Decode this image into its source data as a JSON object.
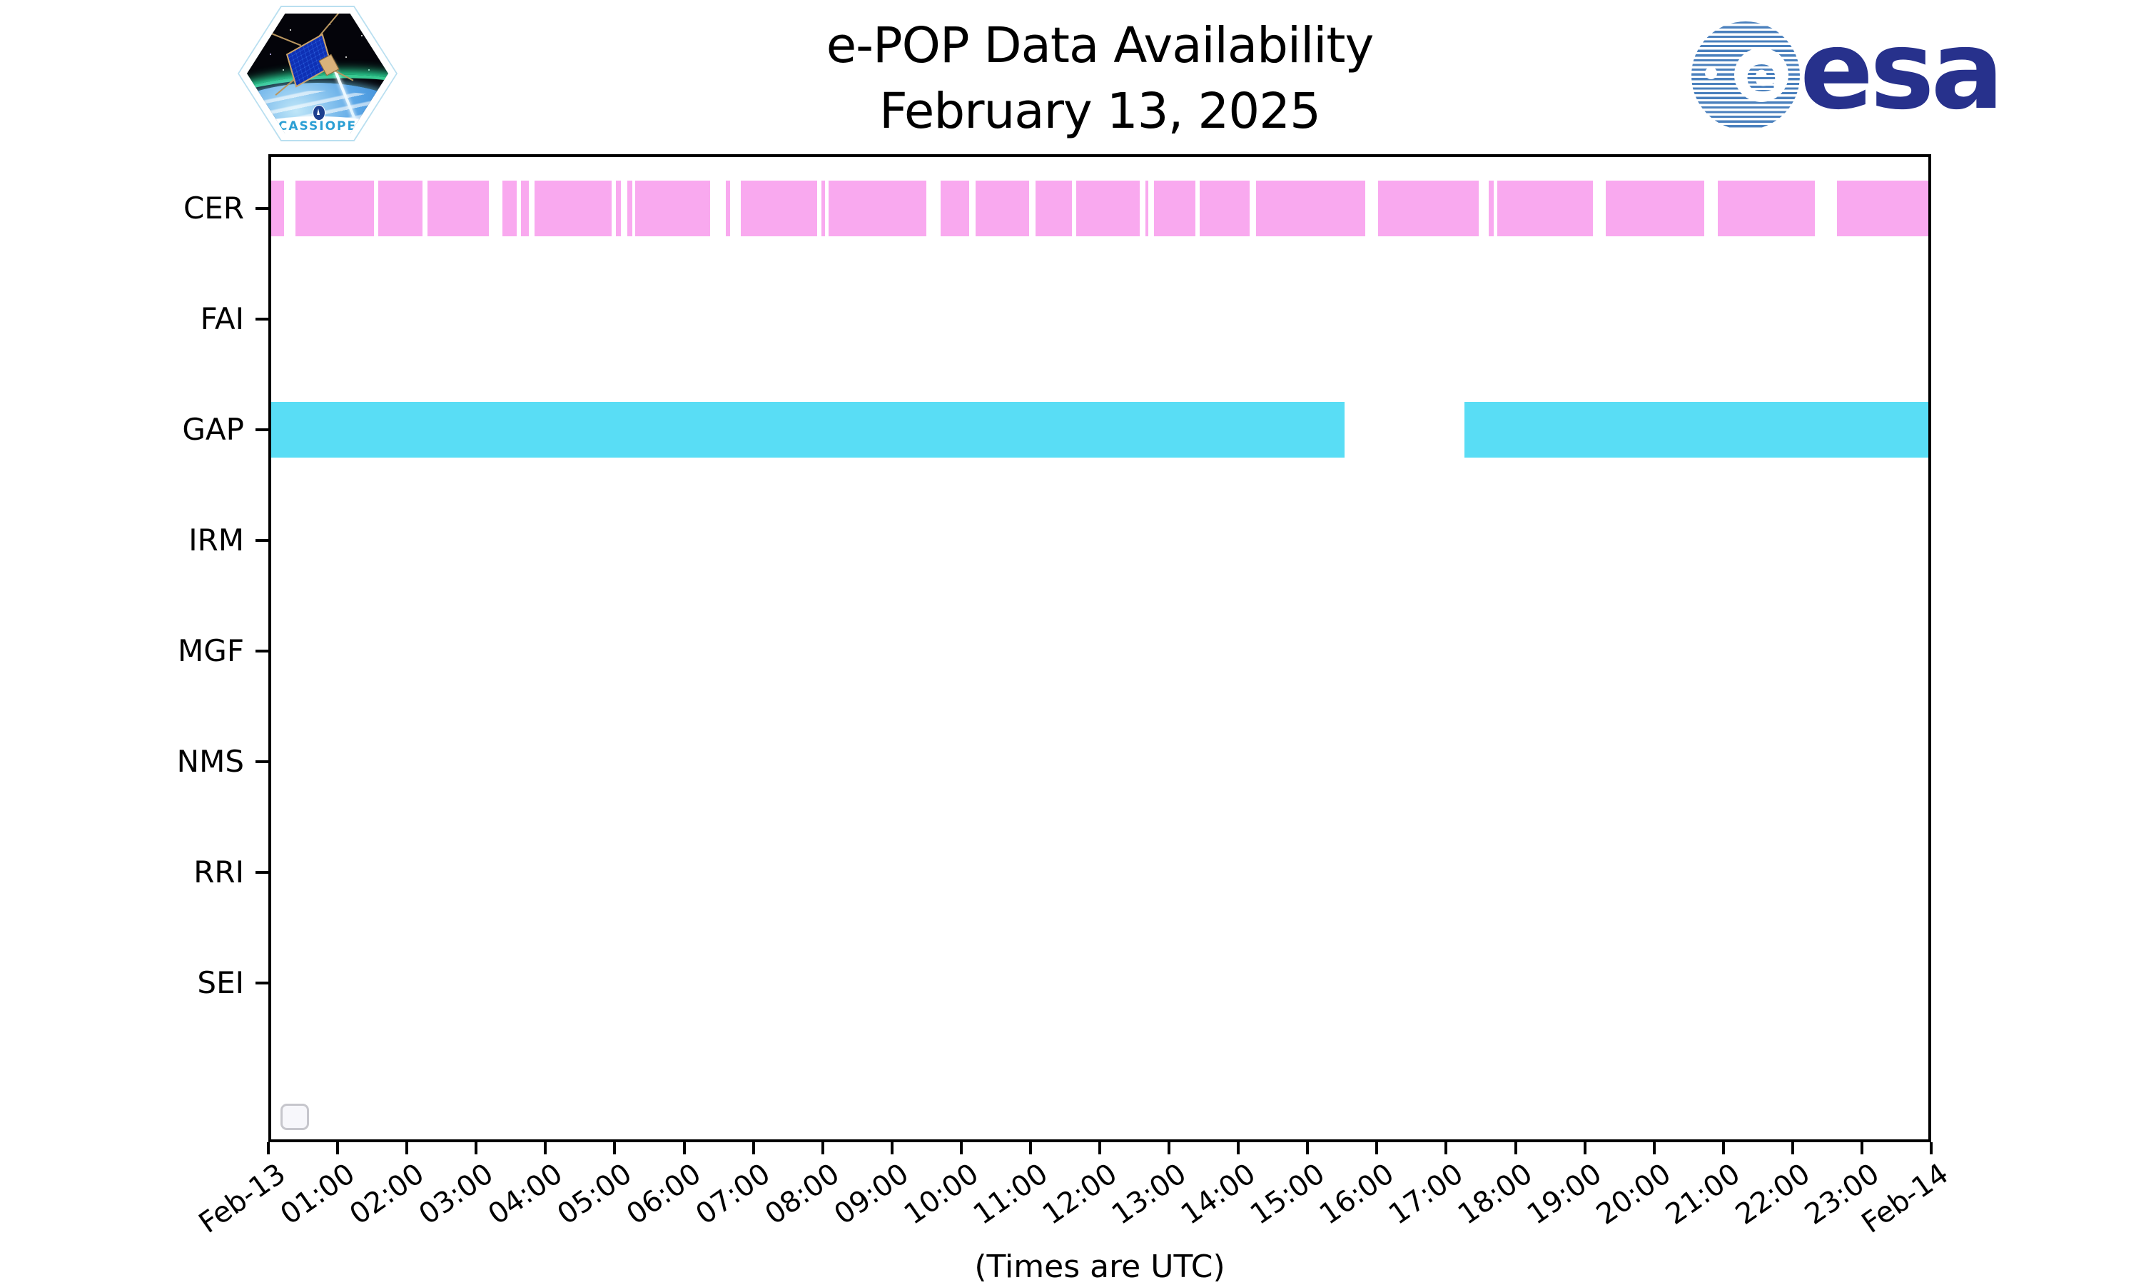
{
  "header": {
    "title": "e-POP Data Availability",
    "subtitle": "February 13, 2025",
    "cassiope_label": "CASSIOPE",
    "esa_wordmark": "esa",
    "esa_globe_letter": "e"
  },
  "footer_note": "(Times are UTC)",
  "colors": {
    "cer_bar": "#F9A9EF",
    "gap_bar": "#59DDF5",
    "axis": "#000000",
    "esa_navy": "#27318c",
    "esa_stripe_blue": "#4a80bd",
    "cassiope_text_blue": "#2b9fd4"
  },
  "chart_data": {
    "type": "timeline",
    "title": "e-POP Data Availability",
    "subtitle": "February 13, 2025",
    "xlabel": "(Times are UTC)",
    "x_axis": {
      "units": "hours UTC on 2025-02-13",
      "min_hour": 0,
      "max_hour": 24,
      "tick_interval_hours": 1,
      "tick_labels": [
        "Feb-13",
        "01:00",
        "02:00",
        "03:00",
        "04:00",
        "05:00",
        "06:00",
        "07:00",
        "08:00",
        "09:00",
        "10:00",
        "11:00",
        "12:00",
        "13:00",
        "14:00",
        "15:00",
        "16:00",
        "17:00",
        "18:00",
        "19:00",
        "20:00",
        "21:00",
        "22:00",
        "23:00",
        "Feb-14"
      ]
    },
    "rows": [
      "CER",
      "FAI",
      "GAP",
      "IRM",
      "MGF",
      "NMS",
      "RRI",
      "SEI"
    ],
    "series": [
      {
        "row": "CER",
        "color": "#F9A9EF",
        "intervals_hours": [
          [
            0.0,
            0.23
          ],
          [
            0.39,
            1.52
          ],
          [
            1.59,
            2.23
          ],
          [
            2.3,
            3.18
          ],
          [
            3.38,
            3.58
          ],
          [
            3.65,
            3.76
          ],
          [
            3.84,
            4.95
          ],
          [
            5.02,
            5.09
          ],
          [
            5.18,
            5.25
          ],
          [
            5.29,
            6.38
          ],
          [
            6.6,
            6.66
          ],
          [
            6.82,
            7.92
          ],
          [
            7.98,
            8.03
          ],
          [
            8.09,
            9.5
          ],
          [
            9.7,
            10.12
          ],
          [
            10.21,
            10.98
          ],
          [
            11.07,
            11.6
          ],
          [
            11.66,
            12.58
          ],
          [
            12.66,
            12.7
          ],
          [
            12.78,
            13.38
          ],
          [
            13.44,
            14.16
          ],
          [
            14.26,
            15.83
          ],
          [
            16.02,
            17.47
          ],
          [
            17.61,
            17.69
          ],
          [
            17.74,
            19.12
          ],
          [
            19.3,
            20.72
          ],
          [
            20.92,
            22.32
          ],
          [
            22.64,
            23.98
          ]
        ]
      },
      {
        "row": "GAP",
        "color": "#59DDF5",
        "intervals_hours": [
          [
            0.0,
            15.53
          ],
          [
            17.26,
            24.0
          ]
        ]
      }
    ],
    "legend": {
      "visible": true,
      "entries": []
    },
    "grid": false
  }
}
